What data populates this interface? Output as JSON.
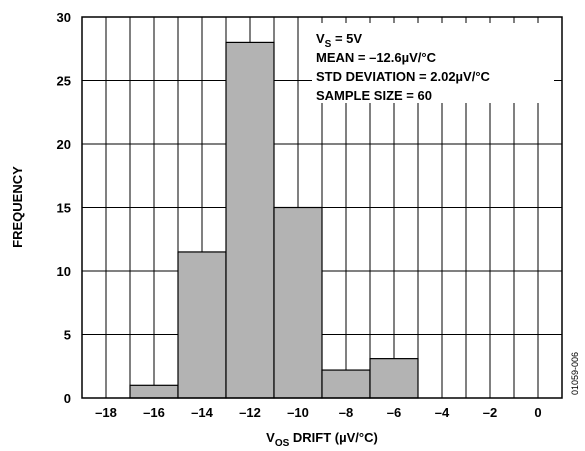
{
  "chart_data": {
    "type": "bar",
    "subtype": "histogram",
    "bins": [
      {
        "x0": -17,
        "x1": -15,
        "value": 1
      },
      {
        "x0": -15,
        "x1": -13,
        "value": 11.5
      },
      {
        "x0": -13,
        "x1": -11,
        "value": 28
      },
      {
        "x0": -11,
        "x1": -9,
        "value": 15
      },
      {
        "x0": -9,
        "x1": -7,
        "value": 2.2
      },
      {
        "x0": -7,
        "x1": -5,
        "value": 3.1
      }
    ],
    "xlabel": {
      "main": "V",
      "sub": "OS",
      "rest": " DRIFT (µV/°C)"
    },
    "ylabel": "FREQUENCY",
    "xlim": [
      -19,
      1
    ],
    "ylim": [
      0,
      30
    ],
    "xticks": [
      -18,
      -16,
      -14,
      -12,
      -10,
      -8,
      -6,
      -4,
      -2,
      0
    ],
    "xtick_labels": [
      "–18",
      "–16",
      "–14",
      "–12",
      "–10",
      "–8",
      "–6",
      "–4",
      "–2",
      "0"
    ],
    "yticks": [
      0,
      5,
      10,
      15,
      20,
      25,
      30
    ],
    "ytick_labels": [
      "0",
      "5",
      "10",
      "15",
      "20",
      "25",
      "30"
    ],
    "grid": true,
    "bar_color": "#b3b3b3",
    "annotations": [
      {
        "main": "V",
        "sub": "S",
        "rest": " = 5V"
      },
      "MEAN = –12.6µV/°C",
      "STD DEVIATION = 2.02µV/°C",
      "SAMPLE SIZE = 60"
    ],
    "figure_id": "01059-006"
  }
}
